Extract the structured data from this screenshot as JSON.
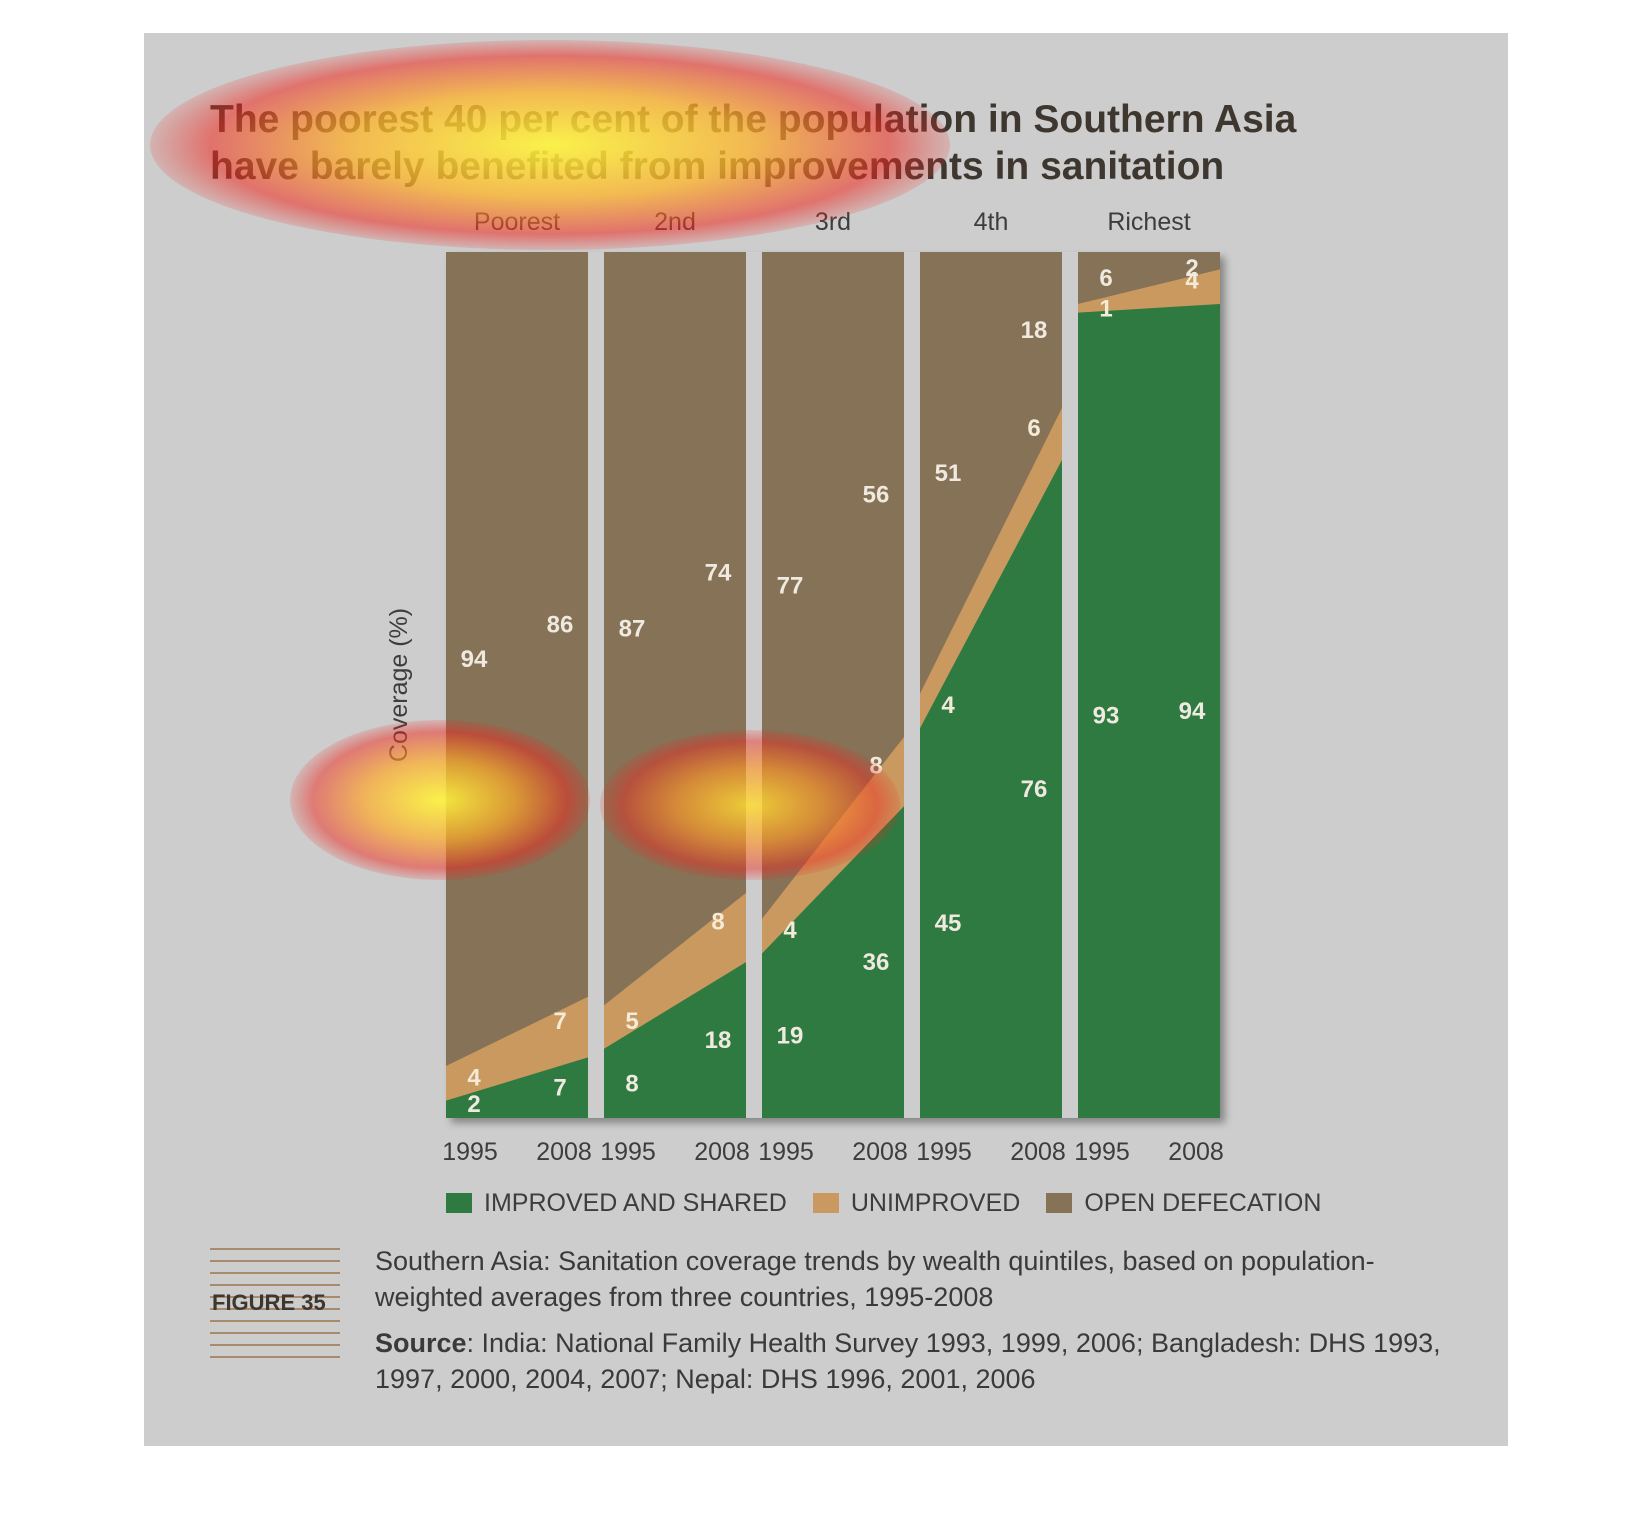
{
  "title_lines": [
    "The poorest 40 per cent of the population in Southern Asia",
    "have barely benefited from improvements in sanitation"
  ],
  "chart_data": {
    "type": "area",
    "ylabel": "Coverage (%)",
    "ylim": [
      0,
      100
    ],
    "panels": [
      {
        "name": "Poorest",
        "x": [
          "1995",
          "2008"
        ],
        "improved": [
          2,
          7
        ],
        "unimproved": [
          4,
          7
        ],
        "open_defecation": [
          94,
          86
        ]
      },
      {
        "name": "2nd",
        "x": [
          "1995",
          "2008"
        ],
        "improved": [
          8,
          18
        ],
        "unimproved": [
          5,
          8
        ],
        "open_defecation": [
          87,
          74
        ]
      },
      {
        "name": "3rd",
        "x": [
          "1995",
          "2008"
        ],
        "improved": [
          19,
          36
        ],
        "unimproved": [
          4,
          8
        ],
        "open_defecation": [
          77,
          56
        ]
      },
      {
        "name": "4th",
        "x": [
          "1995",
          "2008"
        ],
        "improved": [
          45,
          76
        ],
        "unimproved": [
          4,
          6
        ],
        "open_defecation": [
          51,
          18
        ]
      },
      {
        "name": "Richest",
        "x": [
          "1995",
          "2008"
        ],
        "improved": [
          93,
          94
        ],
        "unimproved": [
          1,
          4
        ],
        "open_defecation": [
          6,
          2
        ]
      }
    ],
    "legend": [
      {
        "label": "IMPROVED AND SHARED",
        "color": "#2e7a40"
      },
      {
        "label": "UNIMPROVED",
        "color": "#c9995f"
      },
      {
        "label": "OPEN DEFECATION",
        "color": "#857257"
      }
    ]
  },
  "figure_label": "FIGURE 35",
  "caption": "Southern Asia: Sanitation coverage trends by wealth quintiles, based on population-weighted averages from three countries, 1995-2008",
  "source_label": "Source",
  "source_text": ": India: National Family Health Survey 1993, 1999, 2006; Bangladesh: DHS 1993, 1997, 2000, 2004, 2007; Nepal: DHS 1996, 2001, 2006"
}
